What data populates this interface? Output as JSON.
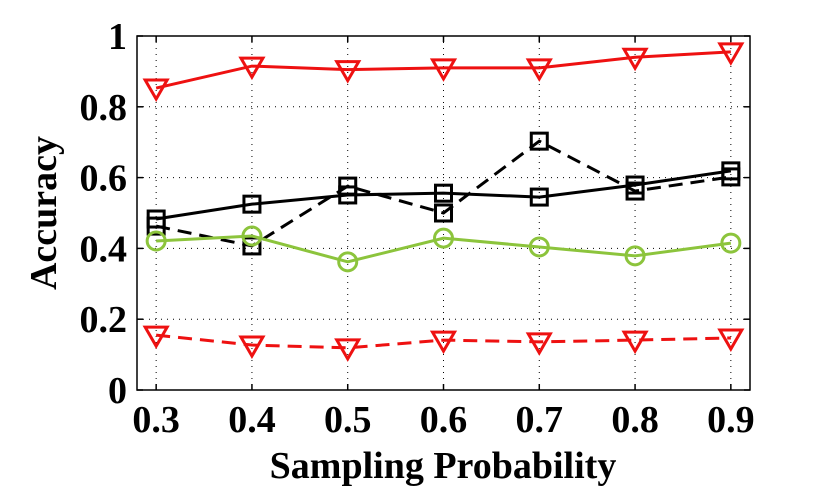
{
  "chart_data": {
    "type": "line",
    "xlabel": "Sampling Probability",
    "ylabel": "Accuracy",
    "x": [
      0.3,
      0.4,
      0.5,
      0.6,
      0.7,
      0.8,
      0.9
    ],
    "xlim": [
      0.28,
      0.92
    ],
    "xticks": [
      0.3,
      0.4,
      0.5,
      0.6,
      0.7,
      0.8,
      0.9
    ],
    "ylim": [
      0,
      1
    ],
    "yticks": [
      0,
      0.2,
      0.4,
      0.6,
      0.8,
      1
    ],
    "grid": true,
    "series": [
      {
        "color": "#ee1111",
        "marker": "triangle-down",
        "dashed": false,
        "values": [
          0.853,
          0.915,
          0.905,
          0.91,
          0.91,
          0.94,
          0.955
        ]
      },
      {
        "color": "#ee1111",
        "marker": "triangle-down",
        "dashed": true,
        "values": [
          0.155,
          0.127,
          0.119,
          0.141,
          0.136,
          0.141,
          0.147
        ]
      },
      {
        "color": "#000000",
        "marker": "square",
        "dashed": false,
        "values": [
          0.483,
          0.525,
          0.551,
          0.556,
          0.545,
          0.579,
          0.619
        ]
      },
      {
        "color": "#000000",
        "marker": "square",
        "dashed": true,
        "values": [
          0.463,
          0.407,
          0.576,
          0.5,
          0.703,
          0.562,
          0.602
        ]
      },
      {
        "color": "#8cc43c",
        "marker": "circle",
        "dashed": false,
        "values": [
          0.421,
          0.435,
          0.362,
          0.429,
          0.404,
          0.379,
          0.415
        ]
      }
    ]
  }
}
